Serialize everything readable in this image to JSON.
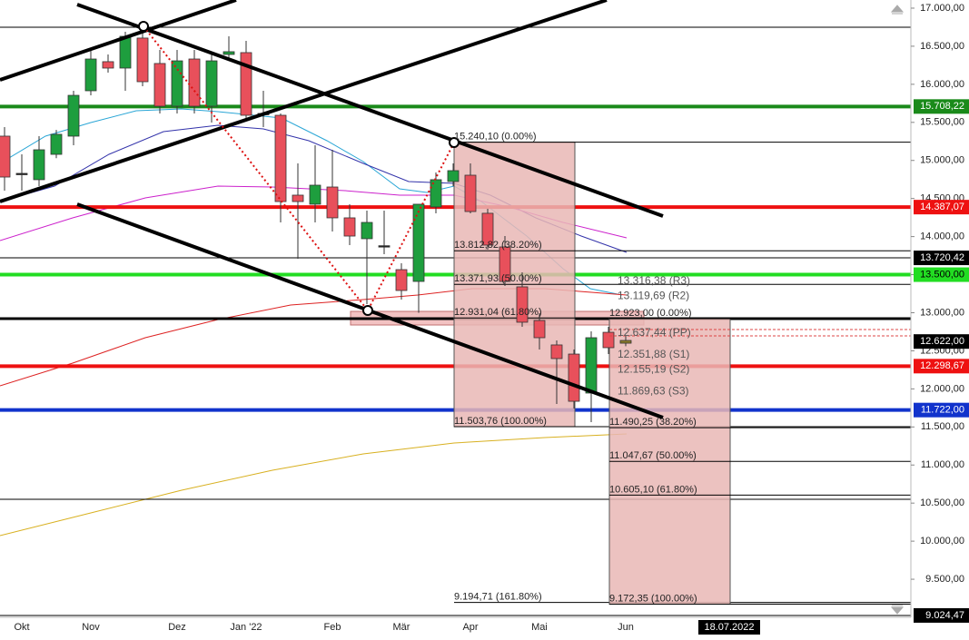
{
  "chart_data": {
    "type": "candlestick",
    "categories": [
      null,
      "Okt",
      null,
      null,
      null,
      "Nov",
      null,
      null,
      null,
      null,
      "Dez",
      null,
      null,
      null,
      "Jan '22",
      null,
      null,
      null,
      null,
      "Feb",
      null,
      null,
      null,
      "Mär",
      null,
      null,
      null,
      "Apr",
      null,
      null,
      null,
      "Mai",
      null,
      null,
      null,
      null,
      "Jun"
    ],
    "open": [
      15319,
      14830,
      14747,
      15080,
      15319,
      15915,
      16297,
      16213,
      16607,
      16273,
      15712,
      16332,
      15712,
      16392,
      16416,
      15617,
      15593,
      14544,
      14425,
      14651,
      14246,
      13972,
      13880,
      13566,
      13411,
      14389,
      14723,
      14806,
      14306,
      13864,
      13340,
      12898,
      12577,
      12457,
      11945,
      12743,
      12600
    ],
    "high": [
      15438,
      15080,
      15319,
      15400,
      15915,
      16452,
      16392,
      16690,
      16690,
      16452,
      16452,
      16452,
      16392,
      16630,
      16571,
      15915,
      15617,
      14961,
      15200,
      15140,
      14425,
      14341,
      14341,
      13650,
      14425,
      14842,
      14961,
      14961,
      14365,
      14007,
      13530,
      12994,
      12636,
      12517,
      12755,
      12815,
      12700
    ],
    "low": [
      14603,
      14603,
      14663,
      15030,
      15200,
      15855,
      16153,
      15915,
      15975,
      15617,
      15617,
      15617,
      15498,
      16332,
      15557,
      15438,
      14186,
      13709,
      14186,
      14067,
      13888,
      13113,
      13769,
      13173,
      13000,
      14306,
      14663,
      14306,
      13829,
      13352,
      12815,
      12517,
      11802,
      11742,
      11563,
      12457,
      12560
    ],
    "close": [
      14782,
      14818,
      15140,
      15343,
      15855,
      16332,
      16213,
      16630,
      16034,
      15712,
      16308,
      15712,
      16308,
      16428,
      15593,
      15600,
      14460,
      14460,
      14675,
      14246,
      14007,
      14186,
      13864,
      13292,
      14425,
      14747,
      14866,
      14329,
      13888,
      13411,
      12875,
      12672,
      12398,
      11837,
      12672,
      12541,
      12636
    ],
    "up_color": "#1e9e3e",
    "down_color": "#e8505b",
    "last_color": "#8a7a2a",
    "ylim": [
      9000,
      17107
    ],
    "yticks": [
      {
        "value": 17000,
        "label": "17.000,00"
      },
      {
        "value": 16500,
        "label": "16.500,00"
      },
      {
        "value": 16000,
        "label": "16.000,00"
      },
      {
        "value": 15500,
        "label": "15.500,00"
      },
      {
        "value": 15000,
        "label": "15.000,00"
      },
      {
        "value": 14500,
        "label": "14.500,00"
      },
      {
        "value": 14000,
        "label": "14.000,00"
      },
      {
        "value": 13500,
        "label": "13.500,00"
      },
      {
        "value": 13000,
        "label": "13.000,00"
      },
      {
        "value": 12500,
        "label": "12.500,00"
      },
      {
        "value": 12000,
        "label": "12.000,00"
      },
      {
        "value": 11500,
        "label": "11.500,00"
      },
      {
        "value": 11000,
        "label": "11.000,00"
      },
      {
        "value": 10500,
        "label": "10.500,00"
      },
      {
        "value": 10000,
        "label": "10.000,00"
      },
      {
        "value": 9500,
        "label": "9.500,00"
      }
    ],
    "levels": [
      {
        "value": 16750,
        "color": "#000000",
        "width": 1
      },
      {
        "value": 15708.22,
        "label": "15.708,22",
        "color": "#1a8a1a",
        "width": 4
      },
      {
        "value": 14387.07,
        "label": "14.387,07",
        "color": "#ee1111",
        "width": 4
      },
      {
        "value": 13720.42,
        "label": "13.720,42",
        "color": "#000000",
        "width": 1
      },
      {
        "value": 13500,
        "label": "13.500,00",
        "color": "#22dd22",
        "width": 4
      },
      {
        "value": 12923,
        "color": "#000000",
        "width": 3
      },
      {
        "value": 12622,
        "label": "12.622,00",
        "color": "#000000",
        "width": 0
      },
      {
        "value": 12298.67,
        "label": "12.298,67",
        "color": "#ee1111",
        "width": 4
      },
      {
        "value": 11722,
        "label": "11.722,00",
        "color": "#1133cc",
        "width": 4
      },
      {
        "value": 10550,
        "color": "#000000",
        "width": 1
      },
      {
        "value": 9024.47,
        "label": "9.024,47",
        "color": "#000000",
        "width": 1
      }
    ],
    "fib_groups": [
      {
        "levels": [
          {
            "value": 15240.1,
            "label": "15.240,10 (0.00%)"
          },
          {
            "value": 13812.82,
            "label": "13.812,82 (38.20%)"
          },
          {
            "value": 13371.93,
            "label": "13.371,93 (50.00%)"
          },
          {
            "value": 12931.04,
            "label": "12.931,04 (61.80%)"
          },
          {
            "value": 11503.76,
            "label": "11.503,76 (100.00%)"
          },
          {
            "value": 9194.71,
            "label": "9.194,71 (161.80%)"
          }
        ]
      },
      {
        "levels": [
          {
            "value": 12923.0,
            "label": "12.923,00 (0.00%)"
          },
          {
            "value": 11490.25,
            "label": "11.490,25 (38.20%)"
          },
          {
            "value": 11047.67,
            "label": "11.047,67 (50.00%)"
          },
          {
            "value": 10605.1,
            "label": "10.605,10 (61.80%)"
          },
          {
            "value": 9172.35,
            "label": "9.172,35 (100.00%)"
          }
        ]
      }
    ],
    "pivots": [
      {
        "value": 13316.38,
        "label": "13.316,38 (R3)"
      },
      {
        "value": 13119.69,
        "label": "13.119,69 (R2)"
      },
      {
        "value": 12637.44,
        "label": "12.637,44 (PP)"
      },
      {
        "value": 12351.88,
        "label": "12.351,88 (S1)"
      },
      {
        "value": 12155.19,
        "label": "12.155,19 (S2)"
      },
      {
        "value": 11869.63,
        "label": "11.869,63 (S3)"
      }
    ],
    "date_label": "18.07.2022"
  }
}
